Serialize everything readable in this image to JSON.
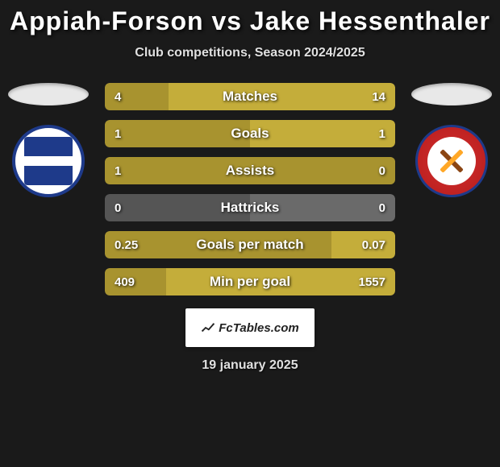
{
  "title": "Appiah-Forson vs Jake Hessenthaler",
  "subtitle": "Club competitions, Season 2024/2025",
  "date": "19 january 2025",
  "footer_label": "FcTables.com",
  "colors": {
    "bar_primary": "#a8932f",
    "bar_primary_light": "#c4ad3a",
    "bar_secondary": "#555555",
    "bar_secondary_light": "#6a6a6a",
    "background": "#1a1a1a",
    "text": "#ffffff"
  },
  "stats": [
    {
      "label": "Matches",
      "left_val": "4",
      "right_val": "14",
      "left_pct": 22,
      "right_pct": 78,
      "left_color": "#a8932f",
      "right_color": "#c4ad3a"
    },
    {
      "label": "Goals",
      "left_val": "1",
      "right_val": "1",
      "left_pct": 50,
      "right_pct": 50,
      "left_color": "#a8932f",
      "right_color": "#c4ad3a"
    },
    {
      "label": "Assists",
      "left_val": "1",
      "right_val": "0",
      "left_pct": 100,
      "right_pct": 0,
      "left_color": "#a8932f",
      "right_color": "#555555"
    },
    {
      "label": "Hattricks",
      "left_val": "0",
      "right_val": "0",
      "left_pct": 0,
      "right_pct": 0,
      "left_color": "#555555",
      "right_color": "#6a6a6a"
    },
    {
      "label": "Goals per match",
      "left_val": "0.25",
      "right_val": "0.07",
      "left_pct": 78,
      "right_pct": 22,
      "left_color": "#a8932f",
      "right_color": "#c4ad3a"
    },
    {
      "label": "Min per goal",
      "left_val": "409",
      "right_val": "1557",
      "left_pct": 21,
      "right_pct": 79,
      "left_color": "#a8932f",
      "right_color": "#c4ad3a"
    }
  ]
}
